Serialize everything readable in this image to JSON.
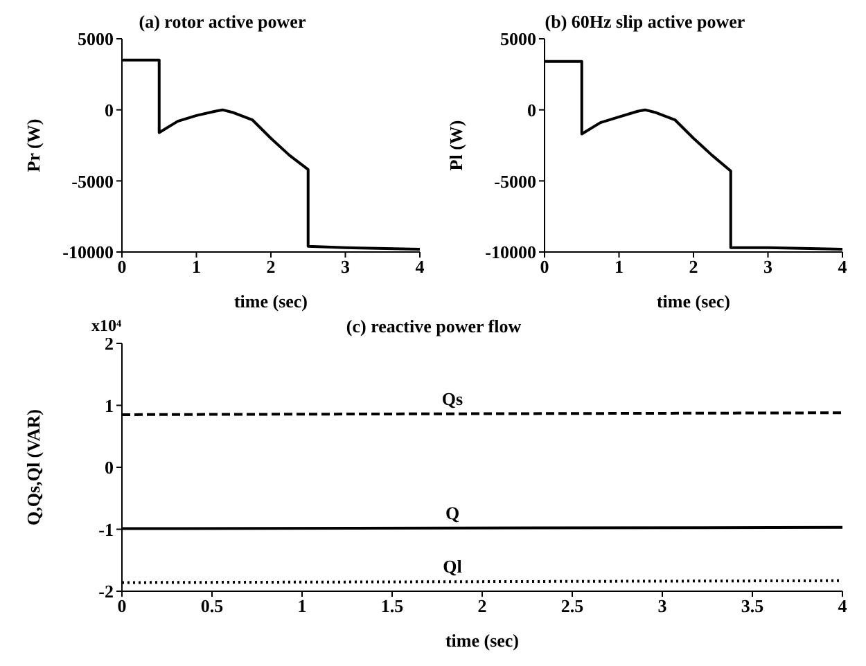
{
  "chart_data": [
    {
      "type": "line",
      "title": "(a) rotor active power",
      "xlabel": "time (sec)",
      "ylabel": "Pr (W)",
      "xlim": [
        0,
        4
      ],
      "xticks": [
        0,
        1,
        2,
        3,
        4
      ],
      "ylim": [
        -10000,
        5000
      ],
      "yticks": [
        -10000,
        -5000,
        0,
        5000
      ],
      "marker": "none",
      "line_style": "solid",
      "x": [
        0,
        0.5,
        0.5,
        0.75,
        1,
        1.25,
        1.35,
        1.5,
        1.75,
        2,
        2.25,
        2.5,
        2.5,
        3,
        4
      ],
      "series": [
        {
          "color": "#000000",
          "values": [
            3500,
            3500,
            -1600,
            -800,
            -400,
            -100,
            0,
            -200,
            -700,
            -2000,
            -3200,
            -4200,
            -9600,
            -9700,
            -9800
          ]
        }
      ]
    },
    {
      "type": "line",
      "title": "(b) 60Hz slip active power",
      "xlabel": "time (sec)",
      "ylabel": "Pl (W)",
      "xlim": [
        0,
        4
      ],
      "xticks": [
        0,
        1,
        2,
        3,
        4
      ],
      "ylim": [
        -10000,
        5000
      ],
      "yticks": [
        -10000,
        -5000,
        0,
        5000
      ],
      "marker": "none",
      "line_style": "solid",
      "x": [
        0,
        0.5,
        0.5,
        0.75,
        1,
        1.25,
        1.35,
        1.5,
        1.75,
        2,
        2.25,
        2.5,
        2.5,
        3,
        4
      ],
      "series": [
        {
          "color": "#000000",
          "values": [
            3400,
            3400,
            -1700,
            -900,
            -500,
            -100,
            0,
            -200,
            -700,
            -2000,
            -3200,
            -4300,
            -9700,
            -9700,
            -9800
          ]
        }
      ]
    },
    {
      "type": "line",
      "title": "(c) reactive power flow",
      "xlabel": "time (sec)",
      "ylabel": "Q,Qs,Ql (VAR)",
      "annotations": [
        "x10⁴"
      ],
      "xlim": [
        0,
        4
      ],
      "xticks": [
        0,
        0.5,
        1,
        1.5,
        2,
        2.5,
        3,
        3.5,
        4
      ],
      "ylim": [
        -2,
        2
      ],
      "yticks": [
        -2,
        -1,
        0,
        1,
        2
      ],
      "marker": "none",
      "x": [
        0,
        4
      ],
      "series": [
        {
          "name": "Qs",
          "color": "#000000",
          "line_style": "dashed",
          "values": [
            0.85,
            0.88
          ]
        },
        {
          "name": "Q",
          "color": "#000000",
          "line_style": "solid",
          "values": [
            -0.99,
            -0.97
          ]
        },
        {
          "name": "Ql",
          "color": "#000000",
          "line_style": "dotted",
          "values": [
            -1.86,
            -1.83
          ]
        }
      ]
    }
  ]
}
